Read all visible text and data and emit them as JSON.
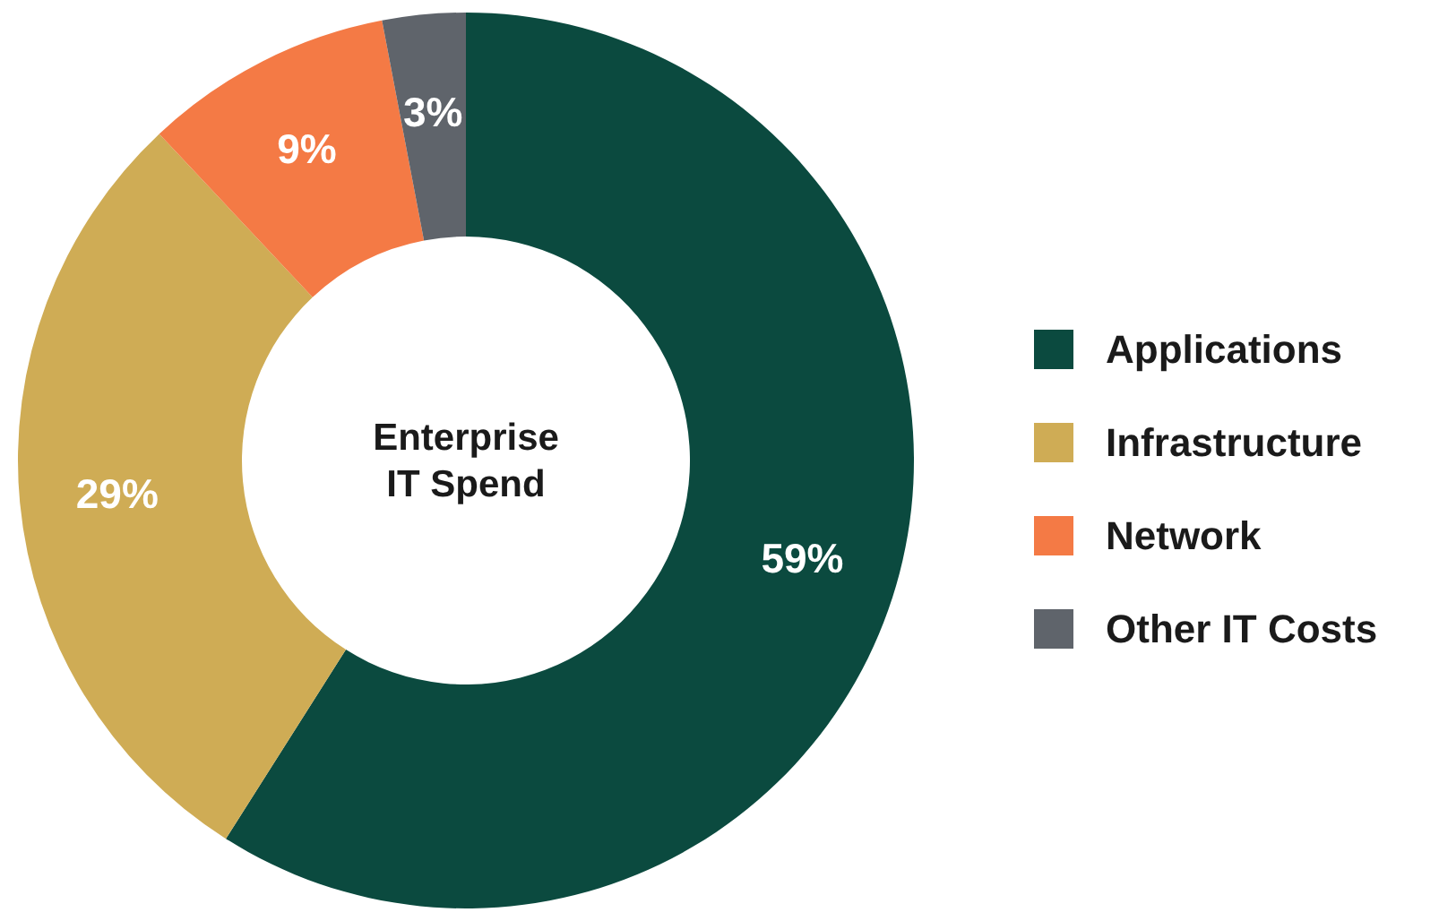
{
  "chart_data": {
    "type": "donut",
    "title": "Enterprise IT Spend",
    "categories": [
      "Applications",
      "Infrastructure",
      "Network",
      "Other IT Costs"
    ],
    "values": [
      59,
      29,
      9,
      3
    ],
    "colors": [
      "#0b4a3f",
      "#cfac55",
      "#f47a45",
      "#5f646b"
    ],
    "value_labels": [
      "59%",
      "29%",
      "9%",
      "3%"
    ],
    "legend": "right"
  }
}
